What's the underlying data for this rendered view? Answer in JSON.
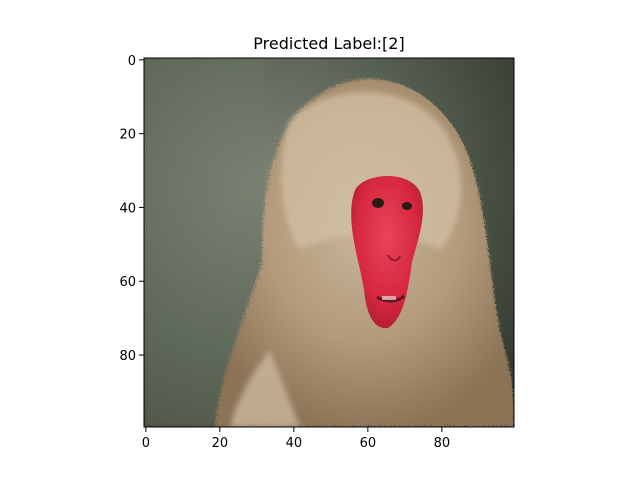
{
  "figure": {
    "title": "Predicted Label:[2]",
    "image_extent": {
      "x_min": -0.5,
      "x_max": 99.5,
      "y_min": -0.5,
      "y_max": 99.5
    },
    "x_ticks": [
      0,
      20,
      40,
      60,
      80
    ],
    "y_ticks": [
      0,
      20,
      40,
      60,
      80
    ],
    "image_subject": "red-faced-macaque-photo"
  }
}
